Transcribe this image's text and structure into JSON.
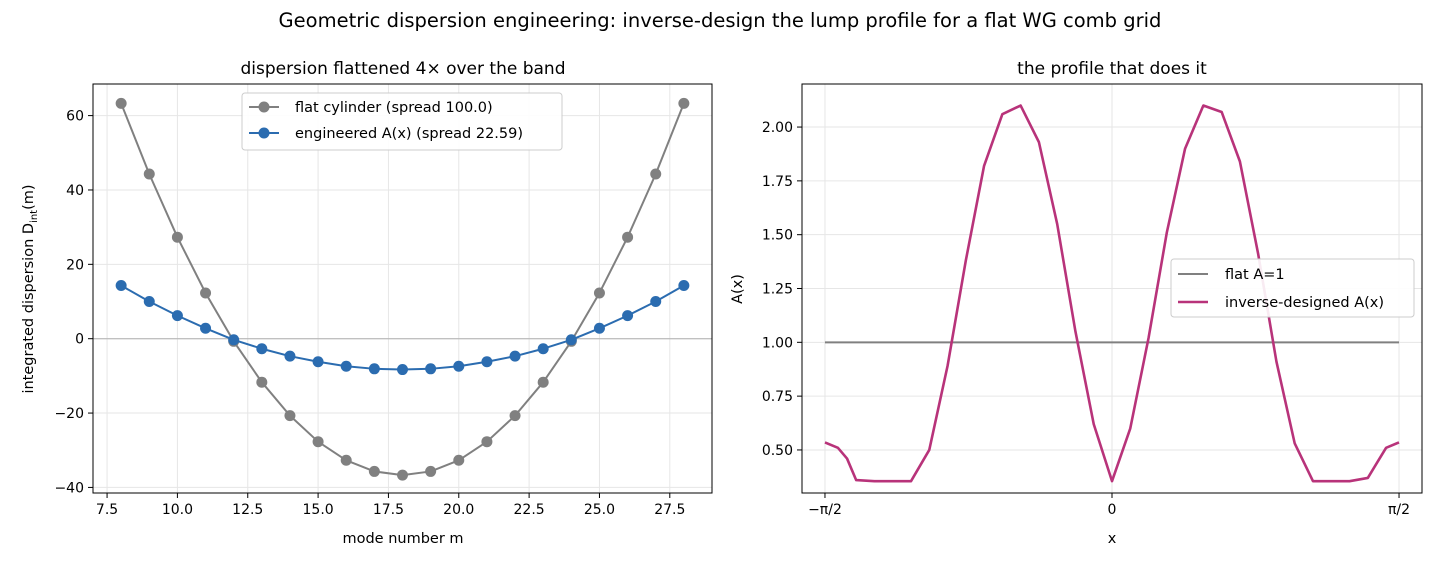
{
  "suptitle": "Geometric dispersion engineering: inverse-design the lump profile for a flat WG comb grid",
  "colors": {
    "gray": "#808080",
    "blue": "#2b6cb0",
    "magenta": "#b8337a",
    "grid": "#e6e6e6",
    "zero": "#b0b0b0"
  },
  "chart_data": [
    {
      "type": "line",
      "title": "dispersion flattened 4× over the band",
      "xlabel": "mode number m",
      "ylabel_main": "integrated dispersion D",
      "ylabel_sub": "int",
      "ylabel_tail": "(m)",
      "xlim": [
        7,
        29
      ],
      "ylim": [
        -41.5,
        68.5
      ],
      "xticks": [
        7.5,
        10,
        12.5,
        15,
        17.5,
        20,
        22.5,
        25,
        27.5
      ],
      "xtick_labels": [
        "7.5",
        "10.0",
        "12.5",
        "15.0",
        "17.5",
        "20.0",
        "22.5",
        "25.0",
        "27.5"
      ],
      "yticks": [
        -40,
        -20,
        0,
        20,
        40,
        60
      ],
      "ytick_labels": [
        "−40",
        "−20",
        "0",
        "20",
        "40",
        "60"
      ],
      "grid": true,
      "legend_position": "upper-center",
      "x": [
        8,
        9,
        10,
        11,
        12,
        13,
        14,
        15,
        16,
        17,
        18,
        19,
        20,
        21,
        22,
        23,
        24,
        25,
        26,
        27,
        28
      ],
      "series": [
        {
          "name": "flat cylinder (spread 100.0)",
          "color": "#808080",
          "values": [
            63.3,
            44.3,
            27.3,
            12.3,
            -0.7,
            -11.7,
            -20.7,
            -27.7,
            -32.7,
            -35.7,
            -36.7,
            -35.7,
            -32.7,
            -27.7,
            -20.7,
            -11.7,
            -0.7,
            12.3,
            27.3,
            44.3,
            63.3
          ]
        },
        {
          "name": "engineered A(x) (spread 22.59)",
          "color": "#2b6cb0",
          "values": [
            14.3,
            10.0,
            6.2,
            2.8,
            -0.3,
            -2.7,
            -4.7,
            -6.2,
            -7.4,
            -8.1,
            -8.3,
            -8.1,
            -7.4,
            -6.2,
            -4.7,
            -2.7,
            -0.3,
            2.8,
            6.2,
            10.0,
            14.3
          ]
        }
      ]
    },
    {
      "type": "line",
      "title": "the profile that does it",
      "xlabel": "x",
      "ylabel": "A(x)",
      "xlim": [
        -1.6965,
        1.6965
      ],
      "ylim": [
        0.3,
        2.2
      ],
      "xticks": [
        -1.5708,
        0,
        1.5708
      ],
      "xtick_labels": [
        "−π/2",
        "0",
        "π/2"
      ],
      "yticks": [
        0.5,
        0.75,
        1.0,
        1.25,
        1.5,
        1.75,
        2.0
      ],
      "ytick_labels": [
        "0.50",
        "0.75",
        "1.00",
        "1.25",
        "1.50",
        "1.75",
        "2.00"
      ],
      "grid": true,
      "legend_position": "center-right",
      "series": [
        {
          "name": "flat A=1",
          "color": "#808080",
          "x": [
            -1.5708,
            1.5708
          ],
          "values": [
            1.0,
            1.0
          ]
        },
        {
          "name": "inverse-designed A(x)",
          "color": "#b8337a",
          "x": [
            -1.5708,
            -1.5,
            -1.45,
            -1.4,
            -1.3,
            -1.2,
            -1.1,
            -1.0,
            -0.9,
            -0.8,
            -0.7,
            -0.6,
            -0.5,
            -0.4,
            -0.3,
            -0.2,
            -0.1,
            0.0,
            0.1,
            0.2,
            0.3,
            0.4,
            0.5,
            0.6,
            0.7,
            0.8,
            0.9,
            1.0,
            1.1,
            1.2,
            1.3,
            1.4,
            1.45,
            1.5,
            1.5708
          ],
          "values": [
            0.535,
            0.51,
            0.46,
            0.36,
            0.355,
            0.355,
            0.355,
            0.5,
            0.89,
            1.38,
            1.82,
            2.06,
            2.1,
            1.93,
            1.55,
            1.05,
            0.62,
            0.355,
            0.6,
            1.02,
            1.51,
            1.9,
            2.1,
            2.07,
            1.84,
            1.41,
            0.91,
            0.53,
            0.355,
            0.355,
            0.355,
            0.37,
            0.44,
            0.51,
            0.535
          ]
        }
      ]
    }
  ]
}
